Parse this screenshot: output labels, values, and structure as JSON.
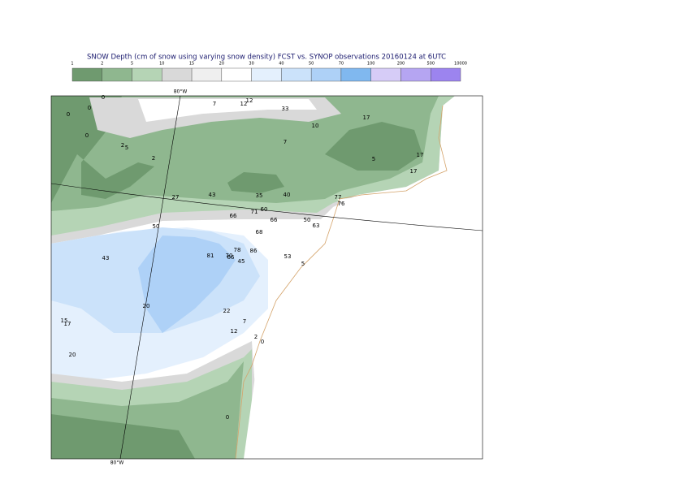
{
  "title": "SNOW Depth (cm of snow using varying snow density) FCST vs. SYNOP observations  20160124 at 6UTC",
  "legend": {
    "levels": [
      1,
      2,
      5,
      10,
      15,
      20,
      30,
      40,
      50,
      70,
      100,
      200,
      500,
      10000
    ],
    "colors": [
      "#6f9a6f",
      "#8fb78f",
      "#b5d4b5",
      "#d9d9d9",
      "#efefef",
      "#ffffff",
      "#e4f0fd",
      "#cbe2fa",
      "#aed1f7",
      "#80b8ef",
      "#d6ccf7",
      "#b5a5f2",
      "#9c84ef"
    ]
  },
  "longitude_labels": [
    "80°W",
    "80°W"
  ],
  "observations": [
    0,
    0,
    0,
    0,
    2,
    5,
    2,
    27,
    43,
    35,
    40,
    7,
    12,
    12,
    33,
    10,
    7,
    17,
    5,
    17,
    17,
    77,
    76,
    66,
    71,
    60,
    66,
    50,
    63,
    50,
    68,
    43,
    81,
    78,
    70,
    66,
    45,
    86,
    53,
    5,
    20,
    22,
    7,
    12,
    2,
    0,
    15,
    17,
    20,
    0
  ]
}
